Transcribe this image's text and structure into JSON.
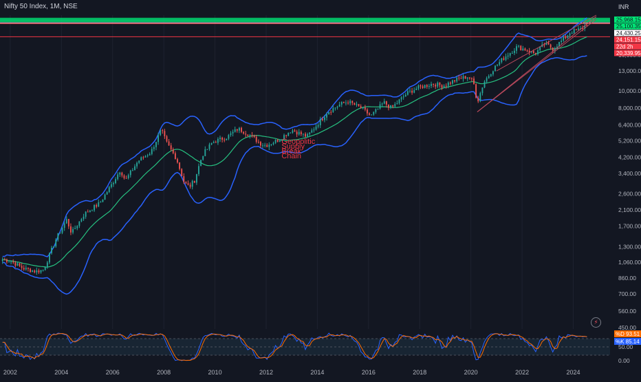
{
  "header": {
    "title": "Nifty 50 Index, 1M, NSE",
    "currency": "INR"
  },
  "colors": {
    "background": "#131722",
    "up": "#26a69a",
    "down": "#ef5350",
    "bollinger": "#2962ff",
    "ma": "#26c281",
    "resistance": "#00e676",
    "support": "#f23645",
    "trendline": "#b9495c",
    "stoch_k": "#2962ff",
    "stoch_d": "#ff6d00"
  },
  "annotations": [
    "Geopolitic",
    "Supply",
    "Break",
    "Chain"
  ],
  "price_badges": [
    {
      "text": "25,968.15",
      "bg": "#00e676",
      "fg": "#131722"
    },
    {
      "text": "25,100.35",
      "bg": "#00e676",
      "fg": "#131722"
    },
    {
      "text": "24,430.25",
      "bg": "#ffffff",
      "fg": "#131722"
    },
    {
      "text": "24,151.15",
      "bg": "#f23645",
      "fg": "#ffffff"
    },
    {
      "text": "22d 2h",
      "bg": "#f23645",
      "fg": "#ffffff"
    },
    {
      "text": "20,339.95",
      "bg": "#f23645",
      "fg": "#ffffff"
    }
  ],
  "stoch_badges": [
    {
      "text": "%D",
      "value": "93.51",
      "bg": "#ff6d00"
    },
    {
      "text": "%K",
      "value": "85.14",
      "bg": "#2962ff"
    }
  ],
  "chart_data": {
    "type": "candlestick",
    "title": "Nifty 50 Index, 1M, NSE",
    "y_scale": "log",
    "ylim": [
      450,
      27000
    ],
    "y_ticks": [
      "16,000.00",
      "13,000.00",
      "10,000.00",
      "8,000.00",
      "6,400.00",
      "5,200.00",
      "4,200.00",
      "3,400.00",
      "2,600.00",
      "2,100.00",
      "1,700.00",
      "1,300.00",
      "1,060.00",
      "860.00",
      "700.00",
      "560.00",
      "450.00"
    ],
    "x_ticks": [
      "2002",
      "2004",
      "2006",
      "2008",
      "2010",
      "2012",
      "2014",
      "2016",
      "2018",
      "2020",
      "2022",
      "2024"
    ],
    "xlim": [
      2001.6,
      2024.9
    ],
    "resistance_levels": [
      25968.15,
      25600,
      25350,
      25100.35,
      24800,
      24430.25
    ],
    "support_levels": [
      24151.15,
      20339.95
    ],
    "key_points": [
      {
        "t": 2001.7,
        "v": 1100
      },
      {
        "t": 2002.0,
        "v": 1080
      },
      {
        "t": 2002.5,
        "v": 980
      },
      {
        "t": 2003.0,
        "v": 940
      },
      {
        "t": 2003.3,
        "v": 960
      },
      {
        "t": 2003.8,
        "v": 1450
      },
      {
        "t": 2004.2,
        "v": 1850
      },
      {
        "t": 2004.4,
        "v": 1550
      },
      {
        "t": 2004.9,
        "v": 2000
      },
      {
        "t": 2005.5,
        "v": 2300
      },
      {
        "t": 2006.0,
        "v": 3000
      },
      {
        "t": 2006.3,
        "v": 3550
      },
      {
        "t": 2006.5,
        "v": 3100
      },
      {
        "t": 2007.0,
        "v": 4000
      },
      {
        "t": 2007.5,
        "v": 4500
      },
      {
        "t": 2007.9,
        "v": 6000
      },
      {
        "t": 2008.1,
        "v": 5100
      },
      {
        "t": 2008.5,
        "v": 4100
      },
      {
        "t": 2008.8,
        "v": 3000
      },
      {
        "t": 2009.0,
        "v": 2850
      },
      {
        "t": 2009.2,
        "v": 3100
      },
      {
        "t": 2009.5,
        "v": 4300
      },
      {
        "t": 2009.9,
        "v": 5100
      },
      {
        "t": 2010.5,
        "v": 5500
      },
      {
        "t": 2010.9,
        "v": 6100
      },
      {
        "t": 2011.3,
        "v": 5700
      },
      {
        "t": 2011.8,
        "v": 5000
      },
      {
        "t": 2012.0,
        "v": 4900
      },
      {
        "t": 2012.5,
        "v": 5300
      },
      {
        "t": 2013.0,
        "v": 6000
      },
      {
        "t": 2013.6,
        "v": 5500
      },
      {
        "t": 2013.9,
        "v": 6200
      },
      {
        "t": 2014.4,
        "v": 7600
      },
      {
        "t": 2014.9,
        "v": 8400
      },
      {
        "t": 2015.2,
        "v": 8700
      },
      {
        "t": 2015.7,
        "v": 8000
      },
      {
        "t": 2016.1,
        "v": 7200
      },
      {
        "t": 2016.6,
        "v": 8600
      },
      {
        "t": 2016.9,
        "v": 8000
      },
      {
        "t": 2017.5,
        "v": 9700
      },
      {
        "t": 2017.9,
        "v": 10400
      },
      {
        "t": 2018.5,
        "v": 11000
      },
      {
        "t": 2018.9,
        "v": 10700
      },
      {
        "t": 2019.5,
        "v": 11700
      },
      {
        "t": 2019.9,
        "v": 12100
      },
      {
        "t": 2020.1,
        "v": 11200
      },
      {
        "t": 2020.25,
        "v": 8600
      },
      {
        "t": 2020.5,
        "v": 11200
      },
      {
        "t": 2020.9,
        "v": 13500
      },
      {
        "t": 2021.3,
        "v": 15500
      },
      {
        "t": 2021.8,
        "v": 17800
      },
      {
        "t": 2022.2,
        "v": 17100
      },
      {
        "t": 2022.5,
        "v": 16300
      },
      {
        "t": 2022.9,
        "v": 18600
      },
      {
        "t": 2023.2,
        "v": 17400
      },
      {
        "t": 2023.6,
        "v": 19600
      },
      {
        "t": 2023.9,
        "v": 21700
      },
      {
        "t": 2024.3,
        "v": 22500
      },
      {
        "t": 2024.6,
        "v": 24500
      }
    ],
    "stochastic": {
      "name": "Stoch",
      "levels": [
        80,
        50,
        20
      ],
      "ylim": [
        0,
        100
      ],
      "y_ticks": [
        "50.00",
        "0.00"
      ],
      "k_last": 85.14,
      "d_last": 93.51
    }
  }
}
